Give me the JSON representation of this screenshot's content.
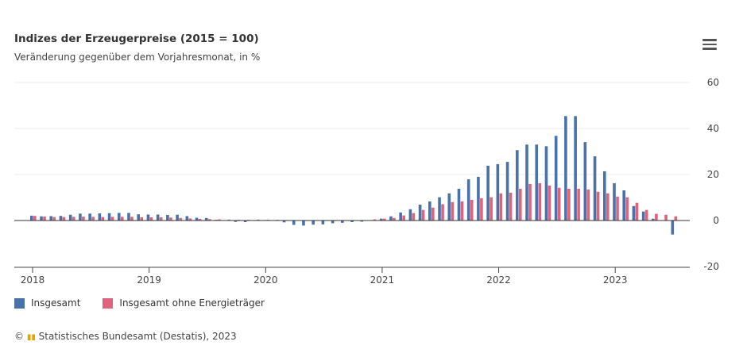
{
  "chart_data": {
    "type": "bar",
    "title": "Indizes der Erzeugerpreise (2015 = 100)",
    "subtitle": "Veränderung gegenüber dem Vorjahresmonat, in %",
    "x_start": "2018-01",
    "frequency": "monthly",
    "x_tick_labels": [
      "2018",
      "2019",
      "2020",
      "2021",
      "2022",
      "2023"
    ],
    "y_ticks": [
      60,
      40,
      20,
      0,
      -20
    ],
    "ylim": [
      -20,
      60
    ],
    "grid": true,
    "legend_position": "bottom-left",
    "series": [
      {
        "name": "Insgesamt",
        "color": "#4a72aa",
        "values": [
          2.1,
          1.8,
          1.9,
          2.0,
          2.5,
          3.0,
          3.0,
          3.1,
          3.2,
          3.3,
          3.3,
          2.7,
          2.6,
          2.6,
          2.4,
          2.5,
          1.9,
          1.2,
          1.1,
          0.3,
          -0.1,
          -0.6,
          -0.7,
          -0.2,
          0.2,
          -0.1,
          -0.8,
          -1.9,
          -2.2,
          -1.8,
          -1.7,
          -1.2,
          -1.0,
          -0.7,
          -0.5,
          0.2,
          0.8,
          1.8,
          3.5,
          4.9,
          6.9,
          8.3,
          10.1,
          11.8,
          13.8,
          17.9,
          19.0,
          23.8,
          24.5,
          25.5,
          30.6,
          33.0,
          33.0,
          32.3,
          36.8,
          45.4,
          45.4,
          34.1,
          27.9,
          21.4,
          16.2,
          13.1,
          6.3,
          3.9,
          0.8,
          0.1,
          -6.1
        ]
      },
      {
        "name": "Insgesamt ohne Energieträger",
        "color": "#e0637b",
        "values": [
          2.0,
          1.7,
          1.5,
          1.5,
          1.6,
          1.7,
          1.6,
          1.5,
          1.6,
          1.6,
          1.6,
          1.4,
          1.4,
          1.4,
          1.3,
          1.1,
          0.9,
          0.7,
          0.6,
          0.5,
          0.4,
          0.3,
          0.3,
          0.4,
          0.3,
          0.3,
          0.2,
          0.0,
          -0.2,
          -0.1,
          -0.2,
          -0.2,
          -0.1,
          0.0,
          0.2,
          0.5,
          0.8,
          1.1,
          2.2,
          3.2,
          4.6,
          5.6,
          7.1,
          8.0,
          8.3,
          9.0,
          9.7,
          10.1,
          11.8,
          12.1,
          13.8,
          15.9,
          16.2,
          15.2,
          14.2,
          13.8,
          13.8,
          13.5,
          12.5,
          11.8,
          10.4,
          10.1,
          7.7,
          4.6,
          2.9,
          2.5,
          1.8
        ]
      }
    ]
  },
  "credit": "Statistisches Bundesamt (Destatis), 2023",
  "copyright": "©",
  "menu_icon": "hamburger-icon"
}
